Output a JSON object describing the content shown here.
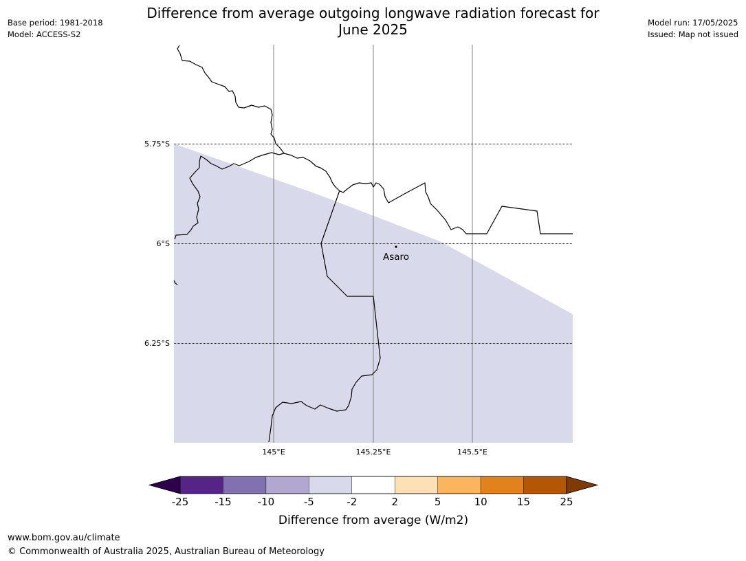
{
  "header": {
    "title_line1": "Difference from average outgoing longwave radiation forecast for",
    "title_line2": "June 2025",
    "base_period": "Base period: 1981-2018",
    "model": "Model: ACCESS-S2",
    "model_run": "Model run: 17/05/2025",
    "issued": "Issued: Map not issued"
  },
  "map": {
    "lat_labels": [
      "5.75°S",
      "6°S",
      "6.25°S"
    ],
    "lon_labels": [
      "145°E",
      "145.25°E",
      "145.5°E"
    ],
    "place": {
      "name": "Asaro",
      "lon": 145.3,
      "lat": -6.01
    },
    "shaded_category": "-5 to -2",
    "shade_color": "#d8d9ea",
    "coast_color": "#000000"
  },
  "colorbar": {
    "ticks": [
      "-25",
      "-15",
      "-10",
      "-5",
      "-2",
      "2",
      "5",
      "10",
      "15",
      "25"
    ],
    "colors": [
      "#562387",
      "#8171b1",
      "#b1a7d1",
      "#d8d9ea",
      "#ffffff",
      "#fde0b5",
      "#fbb55f",
      "#e1821c",
      "#b35707"
    ],
    "under_color": "#2d024b",
    "over_color": "#7f3a06",
    "label": "Difference from average (W/m2)"
  },
  "footer": {
    "url": "www.bom.gov.au/climate",
    "copyright": "© Commonwealth of Australia 2025, Australian Bureau of Meteorology"
  }
}
